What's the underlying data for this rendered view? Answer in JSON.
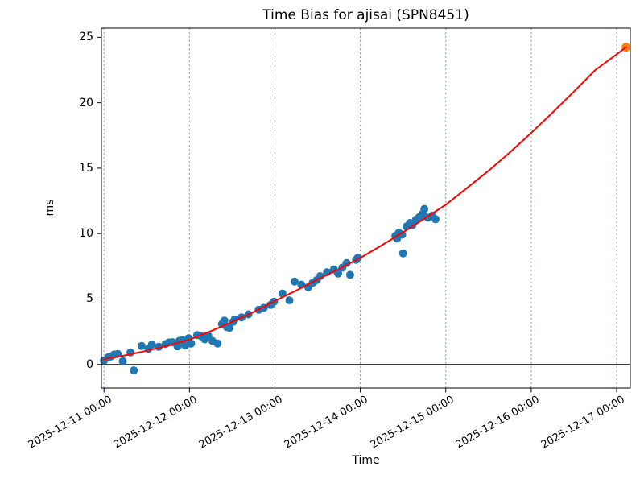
{
  "chart_data": {
    "type": "scatter",
    "title": "Time Bias for ajisai (SPN8451)",
    "xlabel": "Time",
    "ylabel": "ms",
    "x_axis": {
      "unit": "days since 2025-12-11 00:00",
      "tick_positions": [
        0,
        1,
        2,
        3,
        4,
        5,
        6
      ],
      "tick_labels": [
        "2025-12-11 00:00",
        "2025-12-12 00:00",
        "2025-12-13 00:00",
        "2025-12-14 00:00",
        "2025-12-15 00:00",
        "2025-12-16 00:00",
        "2025-12-17 00:00"
      ],
      "lim": [
        -0.03,
        6.16
      ],
      "grid": true,
      "grid_style": "dashed-vertical"
    },
    "y_axis": {
      "tick_positions": [
        0,
        5,
        10,
        15,
        20,
        25
      ],
      "tick_labels": [
        "0",
        "5",
        "10",
        "15",
        "20",
        "25"
      ],
      "lim": [
        -1.8,
        25.7
      ],
      "grid": false
    },
    "zero_line_y": 0,
    "colors": {
      "scatter": "#1f77b4",
      "latest_point": "#ff7f0e",
      "trend_line": "#ff0000",
      "grid": "#6d9bd3",
      "spine": "#000000",
      "zero_line": "#000000"
    },
    "legend": "none",
    "series": [
      {
        "name": "bias-measurements",
        "kind": "scatter",
        "color_key": "scatter",
        "marker_radius": 5,
        "points": [
          [
            0.0,
            0.3
          ],
          [
            0.05,
            0.55
          ],
          [
            0.08,
            0.62
          ],
          [
            0.12,
            0.76
          ],
          [
            0.16,
            0.8
          ],
          [
            0.22,
            0.25
          ],
          [
            0.31,
            0.92
          ],
          [
            0.35,
            -0.45
          ],
          [
            0.44,
            1.42
          ],
          [
            0.52,
            1.2
          ],
          [
            0.56,
            1.52
          ],
          [
            0.64,
            1.35
          ],
          [
            0.72,
            1.56
          ],
          [
            0.76,
            1.68
          ],
          [
            0.8,
            1.7
          ],
          [
            0.86,
            1.38
          ],
          [
            0.88,
            1.8
          ],
          [
            0.92,
            1.85
          ],
          [
            0.95,
            1.45
          ],
          [
            0.99,
            2.0
          ],
          [
            1.02,
            1.6
          ],
          [
            1.09,
            2.25
          ],
          [
            1.14,
            2.15
          ],
          [
            1.18,
            1.92
          ],
          [
            1.22,
            2.2
          ],
          [
            1.27,
            1.8
          ],
          [
            1.33,
            1.6
          ],
          [
            1.38,
            3.1
          ],
          [
            1.41,
            3.35
          ],
          [
            1.44,
            2.85
          ],
          [
            1.47,
            2.8
          ],
          [
            1.51,
            3.25
          ],
          [
            1.53,
            3.45
          ],
          [
            1.61,
            3.6
          ],
          [
            1.69,
            3.83
          ],
          [
            1.81,
            4.18
          ],
          [
            1.87,
            4.33
          ],
          [
            1.95,
            4.55
          ],
          [
            1.99,
            4.8
          ],
          [
            2.09,
            5.42
          ],
          [
            2.17,
            4.9
          ],
          [
            2.23,
            6.34
          ],
          [
            2.31,
            6.1
          ],
          [
            2.39,
            5.9
          ],
          [
            2.44,
            6.23
          ],
          [
            2.49,
            6.45
          ],
          [
            2.53,
            6.75
          ],
          [
            2.61,
            7.05
          ],
          [
            2.69,
            7.26
          ],
          [
            2.74,
            6.95
          ],
          [
            2.79,
            7.4
          ],
          [
            2.84,
            7.75
          ],
          [
            2.88,
            6.85
          ],
          [
            2.95,
            8.0
          ],
          [
            2.97,
            8.15
          ],
          [
            3.41,
            9.83
          ],
          [
            3.43,
            9.62
          ],
          [
            3.45,
            10.07
          ],
          [
            3.49,
            9.92
          ],
          [
            3.5,
            8.49
          ],
          [
            3.54,
            10.54
          ],
          [
            3.58,
            10.81
          ],
          [
            3.61,
            10.65
          ],
          [
            3.65,
            11.06
          ],
          [
            3.69,
            11.26
          ],
          [
            3.73,
            11.51
          ],
          [
            3.75,
            11.88
          ],
          [
            3.79,
            11.22
          ],
          [
            3.84,
            11.37
          ],
          [
            3.88,
            11.1
          ]
        ]
      },
      {
        "name": "latest-prediction-point",
        "kind": "scatter",
        "color_key": "latest_point",
        "marker_radius": 5.5,
        "points": [
          [
            6.11,
            24.25
          ]
        ]
      },
      {
        "name": "trend-fit",
        "kind": "line",
        "color_key": "trend_line",
        "line_width": 2,
        "points": [
          [
            0.0,
            0.4
          ],
          [
            0.25,
            0.7
          ],
          [
            0.5,
            1.05
          ],
          [
            0.75,
            1.45
          ],
          [
            1.0,
            1.9
          ],
          [
            1.25,
            2.55
          ],
          [
            1.5,
            3.25
          ],
          [
            1.75,
            4.0
          ],
          [
            2.0,
            4.85
          ],
          [
            2.25,
            5.65
          ],
          [
            2.5,
            6.5
          ],
          [
            2.75,
            7.3
          ],
          [
            3.0,
            8.15
          ],
          [
            3.25,
            9.1
          ],
          [
            3.5,
            10.1
          ],
          [
            3.75,
            11.15
          ],
          [
            4.0,
            12.2
          ],
          [
            4.25,
            13.5
          ],
          [
            4.5,
            14.8
          ],
          [
            4.75,
            16.2
          ],
          [
            5.0,
            17.7
          ],
          [
            5.25,
            19.25
          ],
          [
            5.5,
            20.85
          ],
          [
            5.75,
            22.5
          ],
          [
            6.0,
            23.7
          ],
          [
            6.11,
            24.25
          ]
        ]
      }
    ]
  }
}
